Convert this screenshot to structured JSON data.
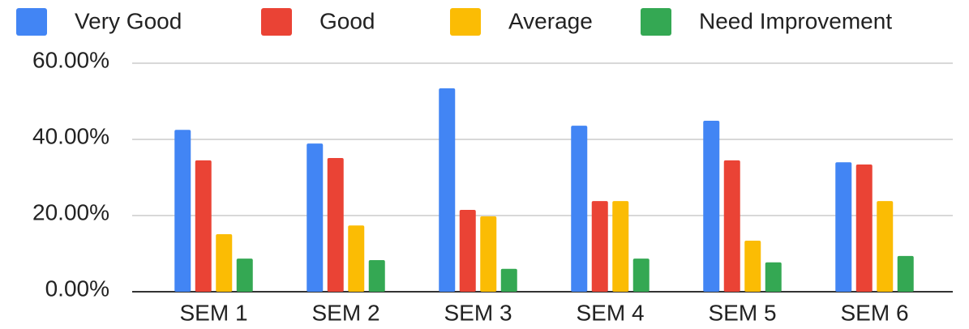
{
  "chart_data": {
    "type": "bar",
    "categories": [
      "SEM 1",
      "SEM 2",
      "SEM 3",
      "SEM 4",
      "SEM 5",
      "SEM 6"
    ],
    "series": [
      {
        "name": "Very Good",
        "color": "#4285f4",
        "values": [
          42.5,
          38.9,
          53.4,
          43.6,
          44.9,
          34.0
        ]
      },
      {
        "name": "Good",
        "color": "#ea4335",
        "values": [
          34.5,
          35.1,
          21.5,
          23.8,
          34.5,
          33.4
        ]
      },
      {
        "name": "Average",
        "color": "#fbbc04",
        "values": [
          15.1,
          17.4,
          19.8,
          23.8,
          13.4,
          23.8
        ]
      },
      {
        "name": "Need Improvement",
        "color": "#34a853",
        "values": [
          8.7,
          8.3,
          6.0,
          8.7,
          7.7,
          9.4
        ]
      }
    ],
    "ylim": [
      0,
      60
    ],
    "yticks": [
      {
        "value": 0,
        "label": "0.00%"
      },
      {
        "value": 20,
        "label": "20.00%"
      },
      {
        "value": 40,
        "label": "40.00%"
      },
      {
        "value": 60,
        "label": "60.00%"
      }
    ],
    "grid": true,
    "legend": "top"
  }
}
